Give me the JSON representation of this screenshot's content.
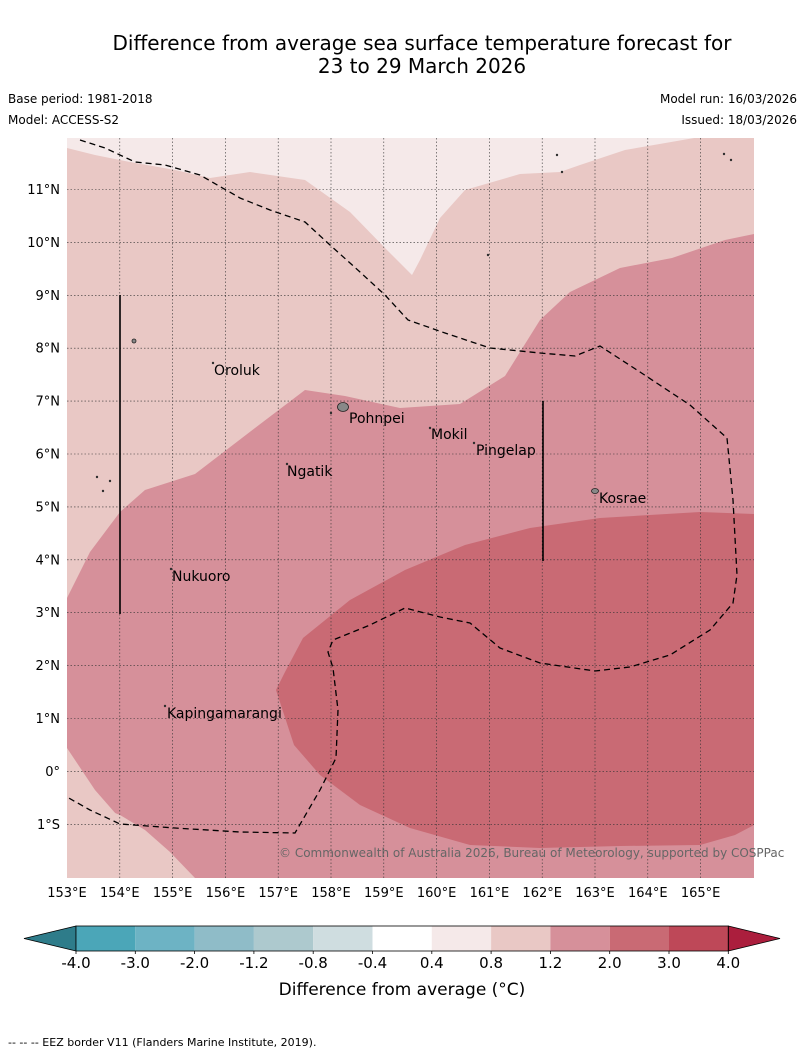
{
  "title": {
    "line1": "Difference from average sea surface temperature forecast for",
    "line2": "23 to 29 March 2026"
  },
  "meta": {
    "base_period": "Base period: 1981-2018",
    "model": "Model: ACCESS-S2",
    "model_run": "Model run: 16/03/2026",
    "issued": "Issued: 18/03/2026"
  },
  "map": {
    "lon_labels": [
      "153°E",
      "154°E",
      "155°E",
      "156°E",
      "157°E",
      "158°E",
      "159°E",
      "160°E",
      "161°E",
      "162°E",
      "163°E",
      "164°E",
      "165°E"
    ],
    "lat_labels": [
      "11°N",
      "10°N",
      "9°N",
      "8°N",
      "7°N",
      "6°N",
      "5°N",
      "4°N",
      "3°N",
      "2°N",
      "1°N",
      "0°",
      "1°S"
    ],
    "places": [
      "Oroluk",
      "Pohnpei",
      "Mokil",
      "Pingelap",
      "Ngatik",
      "Kosrae",
      "Nukuoro",
      "Kapingamarangi"
    ],
    "copyright": "© Commonwealth of Australia 2026, Bureau of Meteorology, supported by COSPPac",
    "colors": {
      "band_0_4_0_8": "#f5e9e9",
      "band_0_8_1_2": "#e9c8c5",
      "band_1_2_2_0": "#d6909a",
      "band_2_0_3_0": "#c96a74"
    }
  },
  "colorbar": {
    "ticks": [
      "-4.0",
      "-3.0",
      "-2.0",
      "-1.2",
      "-0.8",
      "-0.4",
      "0.4",
      "0.8",
      "1.2",
      "2.0",
      "3.0",
      "4.0"
    ],
    "colors": [
      "#2e7c8a",
      "#4ba6b8",
      "#6db3c4",
      "#8fbcc8",
      "#adc9ce",
      "#cfdde0",
      "#ffffff",
      "#f5e9e9",
      "#e9c8c5",
      "#d6909a",
      "#c96a74",
      "#be4858",
      "#ab1e3d"
    ],
    "title": "Difference from average (°C)"
  },
  "footnote": "--  --  -- EEZ border V11 (Flanders Marine Institute, 2019)."
}
